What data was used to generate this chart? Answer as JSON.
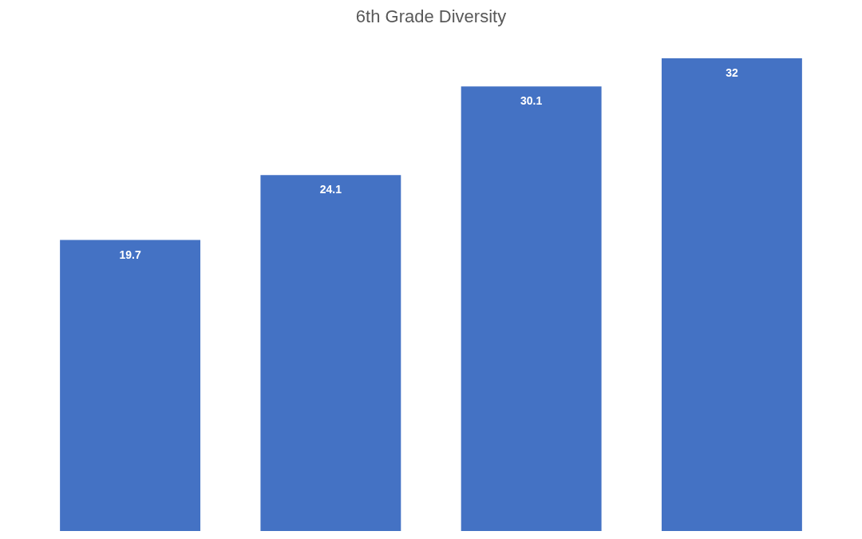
{
  "chart_data": {
    "type": "bar",
    "title": "6th Grade Diversity",
    "categories": [
      null,
      null,
      null,
      null
    ],
    "values": [
      19.7,
      24.1,
      30.1,
      32
    ],
    "color": "#4472c4",
    "data_labels": true
  }
}
